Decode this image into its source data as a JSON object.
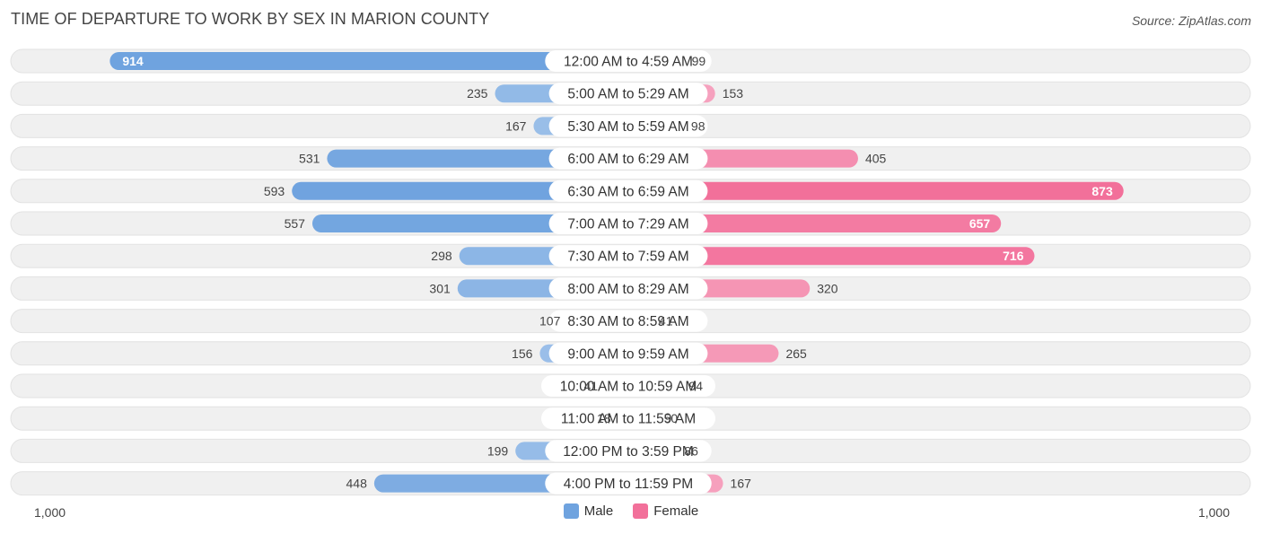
{
  "header": {
    "title": "TIME OF DEPARTURE TO WORK BY SEX IN MARION COUNTY",
    "source": "Source: ZipAtlas.com"
  },
  "colors": {
    "male": "#6fa3df",
    "male_light": "#a9c8ec",
    "female": "#f2709a",
    "female_light": "#f7adc6",
    "track": "#f0f0f0"
  },
  "legend": {
    "male": "Male",
    "female": "Female"
  },
  "axis": {
    "left_label": "1,000",
    "right_label": "1,000"
  },
  "chart_data": {
    "type": "bar",
    "orientation": "diverging-horizontal",
    "categories": [
      "12:00 AM to 4:59 AM",
      "5:00 AM to 5:29 AM",
      "5:30 AM to 5:59 AM",
      "6:00 AM to 6:29 AM",
      "6:30 AM to 6:59 AM",
      "7:00 AM to 7:29 AM",
      "7:30 AM to 7:59 AM",
      "8:00 AM to 8:29 AM",
      "8:30 AM to 8:59 AM",
      "9:00 AM to 9:59 AM",
      "10:00 AM to 10:59 AM",
      "11:00 AM to 11:59 AM",
      "12:00 PM to 3:59 PM",
      "4:00 PM to 11:59 PM"
    ],
    "series": [
      {
        "name": "Male",
        "values": [
          914,
          235,
          167,
          531,
          593,
          557,
          298,
          301,
          107,
          156,
          41,
          18,
          199,
          448
        ]
      },
      {
        "name": "Female",
        "values": [
          99,
          153,
          98,
          405,
          873,
          657,
          716,
          320,
          41,
          265,
          94,
          50,
          86,
          167
        ]
      }
    ],
    "xlim": [
      -1000,
      1000
    ],
    "title": "TIME OF DEPARTURE TO WORK BY SEX IN MARION COUNTY",
    "legend_position": "bottom-center"
  }
}
